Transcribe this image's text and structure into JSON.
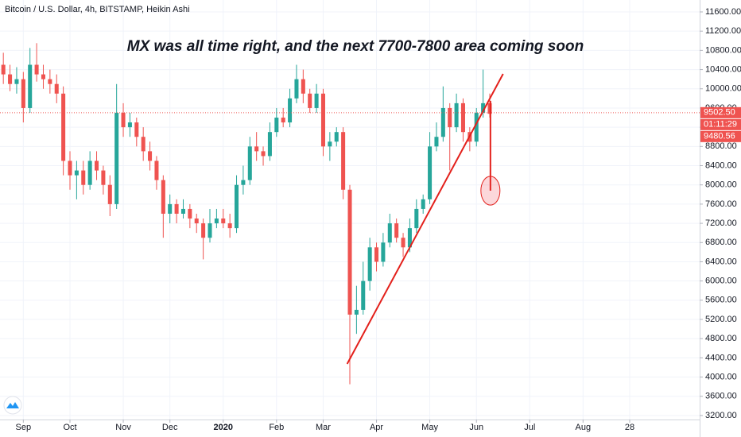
{
  "chart_data": {
    "type": "candlestick",
    "header": "Bitcoin / U.S. Dollar, 4h, BITSTAMP, Heikin Ashi",
    "title": "MX was all time right, and the next 7700-7800 area coming soon",
    "categories": [
      null,
      null,
      null,
      "Sep",
      null,
      null,
      null,
      null,
      null,
      null,
      "Oct",
      null,
      null,
      null,
      null,
      null,
      null,
      null,
      "Nov",
      null,
      null,
      null,
      null,
      null,
      null,
      "Dec",
      null,
      null,
      null,
      null,
      null,
      null,
      null,
      "2020",
      null,
      null,
      null,
      null,
      null,
      null,
      null,
      "Feb",
      null,
      null,
      null,
      null,
      null,
      null,
      "Mar",
      null,
      null,
      null,
      null,
      null,
      null,
      null,
      "Apr",
      null,
      null,
      null,
      null,
      null,
      null,
      null,
      "May",
      null,
      null,
      null,
      null,
      null,
      null,
      "Jun",
      null,
      null,
      null,
      null,
      null,
      null,
      null,
      "Jul",
      null,
      null,
      null,
      null,
      null,
      null,
      null,
      "Aug",
      null,
      null,
      null,
      null,
      null,
      null,
      "28",
      null,
      null,
      null,
      null,
      null,
      null,
      null,
      null,
      null,
      null
    ],
    "open": [
      10500,
      10300,
      10100,
      10200,
      9600,
      10500,
      10300,
      10200,
      10100,
      9900,
      8500,
      8200,
      8300,
      8000,
      8500,
      8300,
      8000,
      7600,
      9500,
      9200,
      9300,
      9000,
      8700,
      8500,
      8100,
      7400,
      7600,
      7400,
      7500,
      7300,
      7200,
      6900,
      7200,
      7300,
      7200,
      7100,
      8000,
      8100,
      8800,
      8700,
      8600,
      9100,
      9400,
      9300,
      9800,
      10200,
      9900,
      9600,
      9900,
      8800,
      8900,
      9100,
      7900,
      5300,
      5400,
      6000,
      6700,
      6400,
      6800,
      7200,
      6900,
      6700,
      7100,
      7500,
      7700,
      8800,
      9000,
      9600,
      9200,
      9700,
      9100,
      8900,
      9500,
      9700,
      null,
      null,
      null,
      null,
      null,
      null,
      null,
      null,
      null,
      null,
      null,
      null,
      null,
      null,
      null,
      null,
      null,
      null,
      null,
      null,
      null,
      null,
      null,
      null,
      null,
      null,
      null,
      null,
      null,
      null,
      null
    ],
    "high": [
      10750,
      10500,
      10450,
      10350,
      10850,
      10950,
      10500,
      10400,
      10300,
      10050,
      8700,
      8500,
      8500,
      8700,
      8700,
      8400,
      8200,
      10100,
      9700,
      9500,
      9400,
      9200,
      8900,
      8600,
      8200,
      7800,
      7700,
      7700,
      7600,
      7400,
      7300,
      7500,
      7500,
      7500,
      7400,
      8200,
      8400,
      9000,
      9100,
      8800,
      9300,
      9600,
      9600,
      10000,
      10500,
      10400,
      10000,
      10100,
      10000,
      9100,
      9200,
      9200,
      8000,
      5900,
      6400,
      6900,
      6800,
      7000,
      7400,
      7300,
      7000,
      7300,
      7700,
      7800,
      9100,
      9300,
      10050,
      9700,
      9900,
      9800,
      9200,
      9600,
      10400,
      9900,
      null,
      null,
      null,
      null,
      null,
      null,
      null,
      null,
      null,
      null,
      null,
      null,
      null,
      null,
      null,
      null,
      null,
      null,
      null,
      null,
      null,
      null,
      null,
      null,
      null,
      null,
      null,
      null,
      null,
      null,
      null
    ],
    "low": [
      10100,
      9950,
      9900,
      9300,
      9500,
      10150,
      10000,
      9900,
      9700,
      8200,
      7900,
      7700,
      7800,
      7900,
      8100,
      7800,
      7350,
      7500,
      9000,
      9000,
      8800,
      8500,
      8300,
      7900,
      6900,
      7200,
      7200,
      7300,
      7100,
      7000,
      6450,
      6800,
      7100,
      7100,
      6900,
      7000,
      7800,
      8000,
      8500,
      8400,
      8500,
      9000,
      9200,
      9200,
      9700,
      9700,
      9500,
      9500,
      8600,
      8500,
      8800,
      7700,
      3850,
      4900,
      5300,
      5800,
      6200,
      6300,
      6700,
      6800,
      6500,
      6600,
      7000,
      7400,
      7600,
      8700,
      8900,
      8300,
      9100,
      8900,
      8700,
      8800,
      9400,
      9400,
      null,
      null,
      null,
      null,
      null,
      null,
      null,
      null,
      null,
      null,
      null,
      null,
      null,
      null,
      null,
      null,
      null,
      null,
      null,
      null,
      null,
      null,
      null,
      null,
      null,
      null,
      null,
      null,
      null,
      null,
      null
    ],
    "close": [
      10300,
      10100,
      10200,
      9600,
      10500,
      10300,
      10200,
      10100,
      9900,
      8500,
      8200,
      8300,
      8000,
      8500,
      8300,
      8000,
      7600,
      9500,
      9200,
      9300,
      9000,
      8700,
      8500,
      8100,
      7400,
      7600,
      7400,
      7500,
      7300,
      7200,
      6900,
      7200,
      7300,
      7200,
      7100,
      8000,
      8100,
      8800,
      8700,
      8600,
      9100,
      9400,
      9300,
      9800,
      10200,
      9900,
      9600,
      9900,
      8800,
      8900,
      9100,
      7900,
      5300,
      5400,
      6000,
      6700,
      6400,
      6800,
      7200,
      6900,
      6700,
      7100,
      7500,
      7700,
      8800,
      9000,
      9600,
      9200,
      9700,
      9100,
      8900,
      9500,
      9700,
      9480,
      null,
      null,
      null,
      null,
      null,
      null,
      null,
      null,
      null,
      null,
      null,
      null,
      null,
      null,
      null,
      null,
      null,
      null,
      null,
      null,
      null,
      null,
      null,
      null,
      null,
      null,
      null,
      null,
      null,
      null,
      null
    ],
    "up_color": "#26a69a",
    "down_color": "#ef5350",
    "ylim": [
      3117,
      11848
    ],
    "yticks": [
      {
        "value": 3200,
        "label": "3200.00"
      },
      {
        "value": 3600,
        "label": "3600.00"
      },
      {
        "value": 4000,
        "label": "4000.00"
      },
      {
        "value": 4400,
        "label": "4400.00"
      },
      {
        "value": 4800,
        "label": "4800.00"
      },
      {
        "value": 5200,
        "label": "5200.00"
      },
      {
        "value": 5600,
        "label": "5600.00"
      },
      {
        "value": 6000,
        "label": "6000.00"
      },
      {
        "value": 6400,
        "label": "6400.00"
      },
      {
        "value": 6800,
        "label": "6800.00"
      },
      {
        "value": 7200,
        "label": "7200.00"
      },
      {
        "value": 7600,
        "label": "7600.00"
      },
      {
        "value": 8000,
        "label": "8000.00"
      },
      {
        "value": 8400,
        "label": "8400.00"
      },
      {
        "value": 8800,
        "label": "8800.00"
      },
      {
        "value": 9200,
        "label": "9200.00"
      },
      {
        "value": 9600,
        "label": "9600.00"
      },
      {
        "value": 10000,
        "label": "10000.00"
      },
      {
        "value": 10400,
        "label": "10400.00"
      },
      {
        "value": 10800,
        "label": "10800.00"
      },
      {
        "value": 11200,
        "label": "11200.00"
      },
      {
        "value": 11600,
        "label": "11600.00"
      }
    ],
    "grid": true,
    "price_line": {
      "value": 9502.5,
      "label": "9502.50"
    },
    "countdown": "01:11:29",
    "last_price": {
      "value": 9480.56,
      "label": "9480.56"
    },
    "annotation_color": "#e3201b",
    "trendlines": [
      {
        "x": [
          51.6,
          75
        ],
        "y": [
          4275,
          10310
        ]
      },
      {
        "x": [
          73.1,
          73.1
        ],
        "y": [
          9750,
          7880
        ]
      }
    ],
    "target_zone": {
      "x": 73.1,
      "low": 7580,
      "high": 8180
    }
  }
}
